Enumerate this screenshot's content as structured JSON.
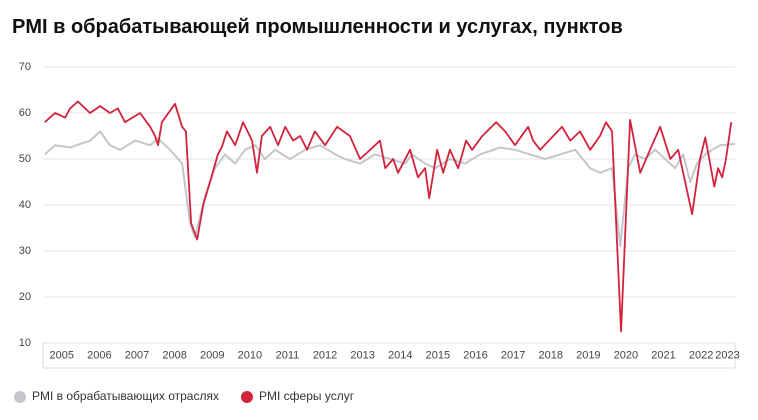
{
  "chart_data": {
    "type": "line",
    "title": "PMI в обрабатывающей промышленности и услугах, пунктов",
    "xlim": [
      2005,
      2023.4
    ],
    "xticks": [
      {
        "value": 2005.5,
        "label": "2005"
      },
      {
        "value": 2006.5,
        "label": "2006"
      },
      {
        "value": 2007.5,
        "label": "2007"
      },
      {
        "value": 2008.5,
        "label": "2008"
      },
      {
        "value": 2009.5,
        "label": "2009"
      },
      {
        "value": 2010.5,
        "label": "2010"
      },
      {
        "value": 2011.5,
        "label": "2011"
      },
      {
        "value": 2012.5,
        "label": "2012"
      },
      {
        "value": 2013.5,
        "label": "2013"
      },
      {
        "value": 2014.5,
        "label": "2014"
      },
      {
        "value": 2015.5,
        "label": "2015"
      },
      {
        "value": 2016.5,
        "label": "2016"
      },
      {
        "value": 2017.5,
        "label": "2017"
      },
      {
        "value": 2018.5,
        "label": "2018"
      },
      {
        "value": 2019.5,
        "label": "2019"
      },
      {
        "value": 2020.5,
        "label": "2020"
      },
      {
        "value": 2021.5,
        "label": "2021"
      },
      {
        "value": 2022.5,
        "label": "2022"
      },
      {
        "value": 2023.2,
        "label": "2023"
      }
    ],
    "ylim": [
      10,
      70
    ],
    "yticks": [
      10,
      20,
      30,
      40,
      50,
      60,
      70
    ],
    "grid": true,
    "legend": "bottom-left",
    "series": [
      {
        "name": "PMI в обрабатывающих отраслях",
        "color": "#c4c6cc",
        "x": [
          2005.05,
          2005.32,
          2005.72,
          2006.25,
          2006.52,
          2006.78,
          2007.05,
          2007.45,
          2007.85,
          2008.06,
          2008.38,
          2008.7,
          2008.91,
          2009.04,
          2009.31,
          2009.57,
          2009.84,
          2010.11,
          2010.37,
          2010.64,
          2010.9,
          2011.17,
          2011.57,
          2011.97,
          2012.37,
          2012.77,
          2013.03,
          2013.43,
          2013.83,
          2014.23,
          2014.63,
          2014.81,
          2015.16,
          2015.43,
          2015.82,
          2016.22,
          2016.62,
          2017.15,
          2017.55,
          2017.95,
          2018.35,
          2018.75,
          2019.15,
          2019.55,
          2019.81,
          2020.13,
          2020.35,
          2020.56,
          2020.74,
          2021.01,
          2021.28,
          2021.54,
          2021.81,
          2022.02,
          2022.21,
          2022.39,
          2022.61,
          2022.79,
          2023.01,
          2023.4
        ],
        "values": [
          51,
          53,
          52.5,
          54,
          56,
          53,
          52,
          54,
          53,
          54.5,
          52,
          49,
          36,
          33,
          42,
          48,
          51,
          49,
          52,
          53,
          50,
          52,
          50,
          52,
          53,
          51,
          50,
          49,
          51,
          50,
          49,
          51,
          49,
          48,
          50,
          49,
          51,
          52.5,
          52,
          51,
          50,
          51,
          52,
          48,
          47,
          48,
          31,
          48,
          51,
          50,
          52,
          50,
          48,
          51,
          45,
          49,
          51,
          52,
          53,
          53.3
        ]
      },
      {
        "name": "PMI сферы услуг",
        "color": "#d2233c",
        "x": [
          2005.05,
          2005.32,
          2005.59,
          2005.72,
          2005.93,
          2006.25,
          2006.52,
          2006.78,
          2006.99,
          2007.18,
          2007.58,
          2007.85,
          2007.98,
          2008.06,
          2008.16,
          2008.51,
          2008.7,
          2008.8,
          2008.94,
          2009.1,
          2009.26,
          2009.44,
          2009.65,
          2009.76,
          2009.89,
          2010.11,
          2010.32,
          2010.56,
          2010.69,
          2010.82,
          2011.04,
          2011.25,
          2011.44,
          2011.65,
          2011.84,
          2012.02,
          2012.23,
          2012.5,
          2012.82,
          2013.16,
          2013.43,
          2013.7,
          2013.96,
          2014.1,
          2014.31,
          2014.44,
          2014.76,
          2014.97,
          2015.16,
          2015.27,
          2015.48,
          2015.64,
          2015.82,
          2016.04,
          2016.25,
          2016.41,
          2016.68,
          2017.05,
          2017.29,
          2017.55,
          2017.9,
          2018.03,
          2018.22,
          2018.8,
          2019.02,
          2019.28,
          2019.55,
          2019.81,
          2019.97,
          2020.13,
          2020.37,
          2020.61,
          2020.88,
          2021.14,
          2021.41,
          2021.68,
          2021.89,
          2022.26,
          2022.47,
          2022.61,
          2022.85,
          2022.95,
          2023.06,
          2023.16,
          2023.3
        ],
        "values": [
          58,
          60,
          59,
          61,
          62.5,
          60,
          61.5,
          60,
          61,
          58,
          60,
          57,
          55,
          53,
          58,
          62,
          57,
          56,
          36,
          32.5,
          40,
          45,
          51,
          52.7,
          56,
          53,
          58,
          54,
          47,
          55,
          57,
          53,
          57,
          54,
          55,
          52,
          56,
          53,
          57,
          55,
          50,
          52,
          54,
          48,
          50,
          47,
          52,
          46,
          48,
          41.5,
          52,
          47,
          52,
          48,
          54,
          52,
          55,
          58,
          56,
          53,
          57,
          54,
          52,
          57,
          54,
          56,
          52,
          55,
          58,
          56,
          12.5,
          58.5,
          47,
          52,
          57,
          50,
          52,
          38,
          50,
          54.7,
          44,
          48,
          46,
          50,
          58
        ]
      }
    ]
  }
}
